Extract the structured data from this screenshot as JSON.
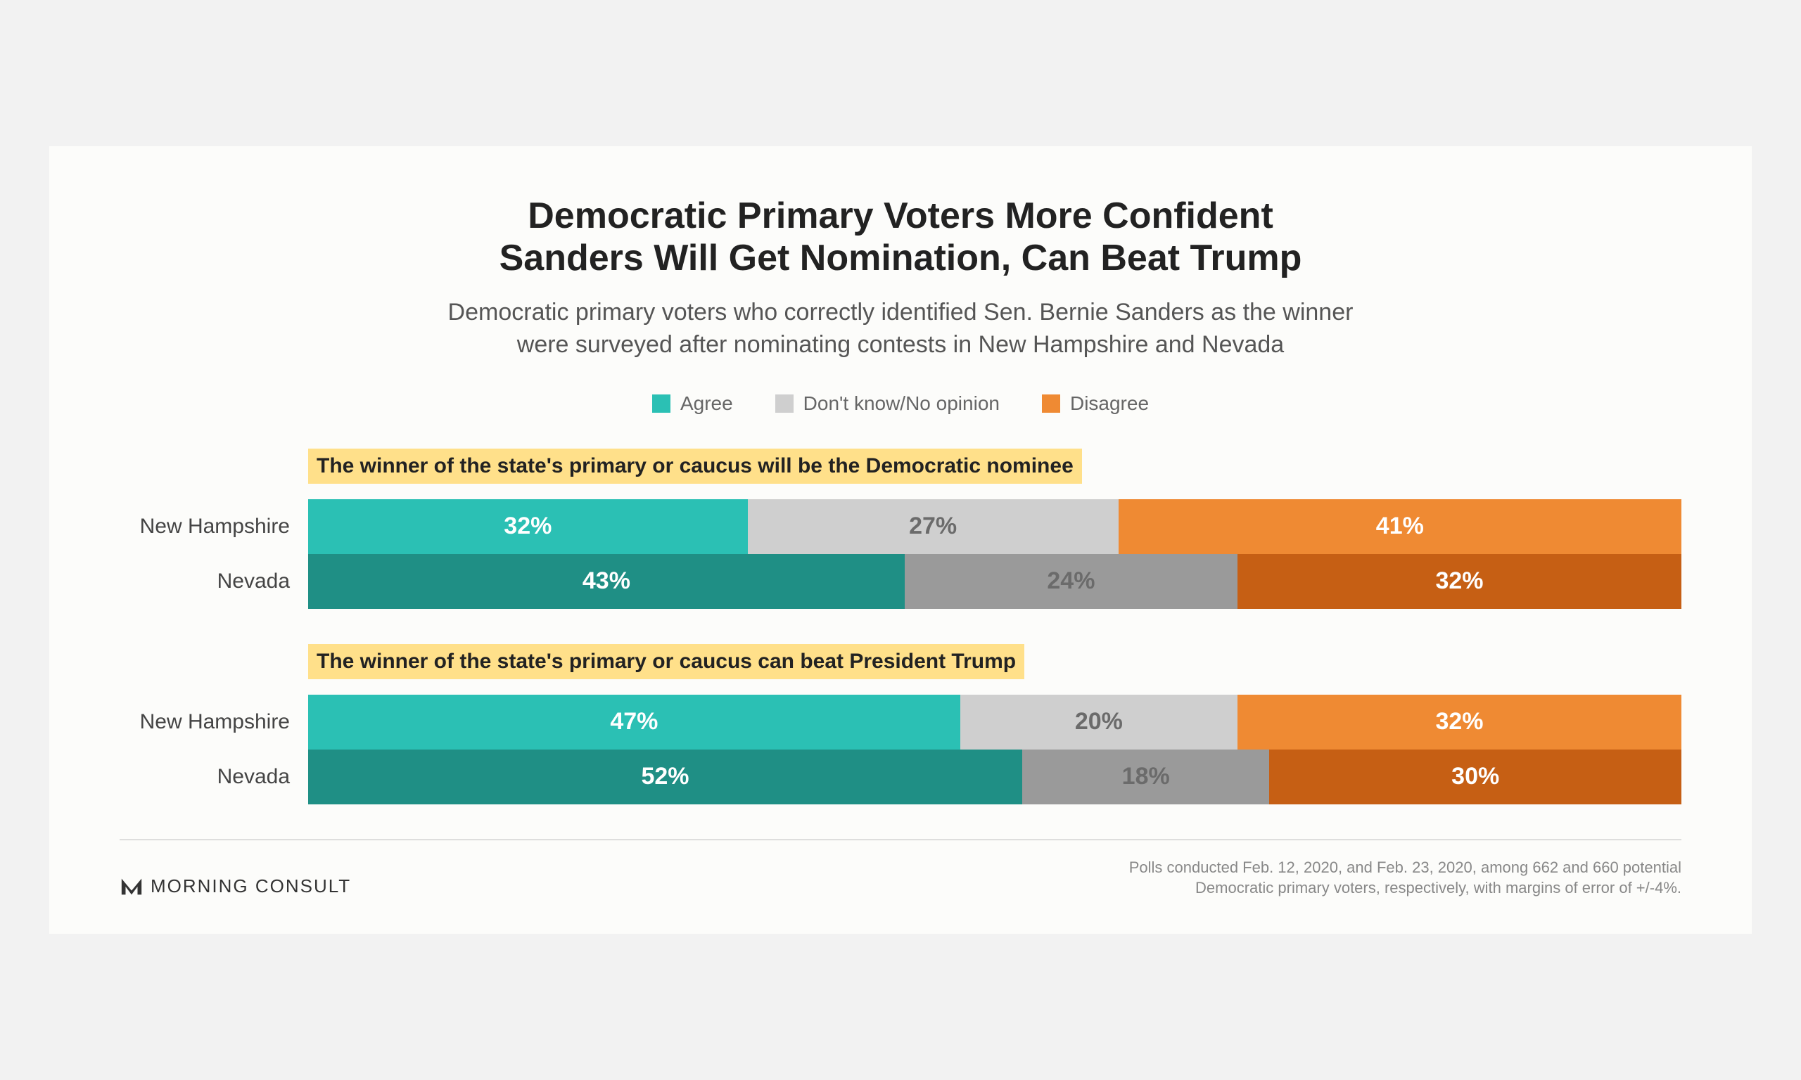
{
  "title_line1": "Democratic Primary Voters More Confident",
  "title_line2": "Sanders Will Get Nomination, Can Beat Trump",
  "subtitle_line1": "Democratic primary voters who correctly identified Sen. Bernie Sanders as the winner",
  "subtitle_line2": "were surveyed after nominating contests in New Hampshire and Nevada",
  "legend": {
    "agree": "Agree",
    "dk": "Don't know/No opinion",
    "disagree": "Disagree"
  },
  "colors": {
    "agree_light": "#2bc0b4",
    "agree_dark": "#1f8f85",
    "dk_light": "#cfcfcf",
    "dk_dark": "#9a9a9a",
    "disagree_light": "#ef8a33",
    "disagree_dark": "#c65f14",
    "dk_text": "#6b6b6b"
  },
  "groups": [
    {
      "label": "The winner of the state's primary or caucus will be the Democratic nominee",
      "rows": [
        {
          "label": "New Hampshire",
          "agree": 32,
          "dk": 27,
          "disagree": 41,
          "shade": "light"
        },
        {
          "label": "Nevada",
          "agree": 43,
          "dk": 24,
          "disagree": 32,
          "shade": "dark"
        }
      ]
    },
    {
      "label": "The winner of the state's primary or caucus can beat President Trump",
      "rows": [
        {
          "label": "New Hampshire",
          "agree": 47,
          "dk": 20,
          "disagree": 32,
          "shade": "light"
        },
        {
          "label": "Nevada",
          "agree": 52,
          "dk": 18,
          "disagree": 30,
          "shade": "dark"
        }
      ]
    }
  ],
  "brand": "MORNING CONSULT",
  "footnote_line1": "Polls conducted Feb. 12, 2020, and Feb. 23, 2020, among 662 and 660 potential",
  "footnote_line2": "Democratic primary voters, respectively, with margins of error of +/-4%.",
  "fontsize": {
    "title": 52,
    "subtitle": 34,
    "legend": 28,
    "group_label": 30,
    "row_label": 30,
    "seg": 34,
    "brand": 26,
    "footnote": 22
  }
}
